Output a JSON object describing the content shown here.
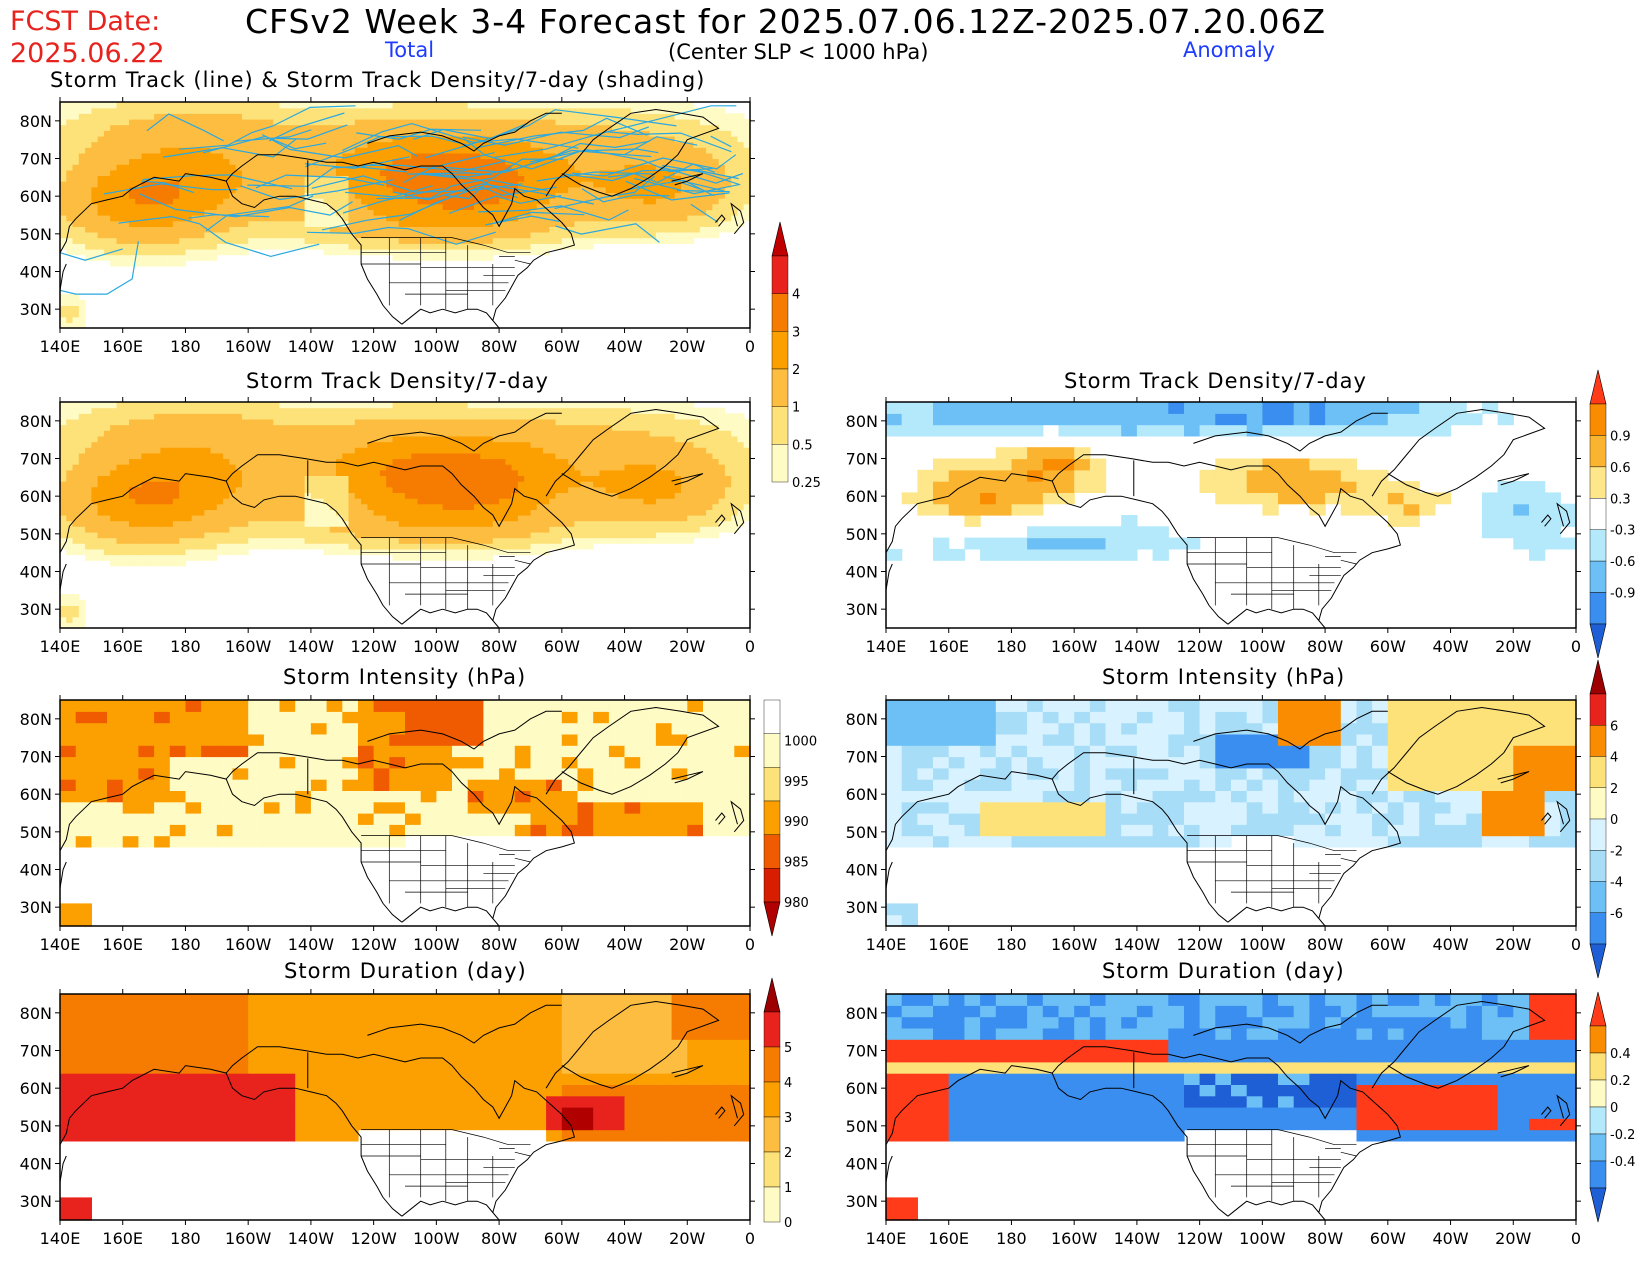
{
  "header": {
    "fcst_label": "FCST Date:",
    "fcst_date": "2025.06.22",
    "title": "CFSv2 Week 3-4 Forecast for 2025.07.06.12Z-2025.07.20.06Z",
    "total_label": "Total",
    "center_label": "(Center SLP < 1000 hPa)",
    "anomaly_label": "Anomaly"
  },
  "axes": {
    "lat_labels": [
      "80N",
      "70N",
      "60N",
      "50N",
      "40N",
      "30N"
    ],
    "lon_labels": [
      "140E",
      "160E",
      "180",
      "160W",
      "140W",
      "120W",
      "100W",
      "80W",
      "60W",
      "40W",
      "20W",
      "0"
    ]
  },
  "panels": [
    {
      "id": "track-total",
      "title": "Storm Track (line) & Storm Track Density/7-day (shading)",
      "column": "total",
      "variable": "density",
      "tracks": true
    },
    {
      "id": "density-total",
      "title": "Storm Track Density/7-day",
      "column": "total",
      "variable": "density"
    },
    {
      "id": "density-anom",
      "title": "Storm Track Density/7-day",
      "column": "anomaly",
      "variable": "density_anom"
    },
    {
      "id": "intensity-total",
      "title": "Storm Intensity (hPa)",
      "column": "total",
      "variable": "intensity"
    },
    {
      "id": "intensity-anom",
      "title": "Storm Intensity (hPa)",
      "column": "anomaly",
      "variable": "intensity_anom"
    },
    {
      "id": "duration-total",
      "title": "Storm Duration (day)",
      "column": "total",
      "variable": "duration"
    },
    {
      "id": "duration-anom",
      "title": "Storm Duration (day)",
      "column": "anomaly",
      "variable": "duration_anom"
    }
  ],
  "colorbars": [
    {
      "id": "cb-density",
      "labels": [
        "4",
        "3",
        "2",
        "1",
        "0.5",
        "0.25"
      ],
      "colors": [
        "#c00000",
        "#e8231e",
        "#f57c00",
        "#fba000",
        "#fdbd40",
        "#fde27a",
        "#fffbc4"
      ]
    },
    {
      "id": "cb-density-anom",
      "labels": [
        "0.9",
        "0.6",
        "0.3",
        "-0.3",
        "-0.6",
        "-0.9"
      ],
      "colors": [
        "#ff3b1a",
        "#f98c00",
        "#fbb430",
        "#fde78a",
        "#ffffff",
        "#b3e9fb",
        "#6cc0f5",
        "#3a8ef0",
        "#1f5fd6"
      ]
    },
    {
      "id": "cb-intensity",
      "labels": [
        "1000",
        "995",
        "990",
        "985",
        "980"
      ],
      "colors": [
        "#ffffff",
        "#fffbc4",
        "#fde27a",
        "#fba000",
        "#f05a00",
        "#d81e00",
        "#b00000"
      ]
    },
    {
      "id": "cb-intensity-anom",
      "labels": [
        "6",
        "4",
        "2",
        "0",
        "-2",
        "-4",
        "-6"
      ],
      "colors": [
        "#9c0000",
        "#e8231e",
        "#f98c00",
        "#fde27a",
        "#fffbc4",
        "#d8f3ff",
        "#a8ddf8",
        "#6cc0f5",
        "#3a8ef0",
        "#1f5fd6"
      ]
    },
    {
      "id": "cb-duration",
      "labels": [
        "5",
        "4",
        "3",
        "2",
        "1",
        "0"
      ],
      "colors": [
        "#9c0000",
        "#e8231e",
        "#f57c00",
        "#fba000",
        "#fdbd40",
        "#fde27a",
        "#fffbc4"
      ]
    },
    {
      "id": "cb-duration-anom",
      "labels": [
        "0.4",
        "0.2",
        "0",
        "-0.2",
        "-0.4"
      ],
      "colors": [
        "#ff3b1a",
        "#f98c00",
        "#fde27a",
        "#fffbc4",
        "#b3e9fb",
        "#6cc0f5",
        "#3a8ef0",
        "#1f5fd6"
      ]
    }
  ]
}
